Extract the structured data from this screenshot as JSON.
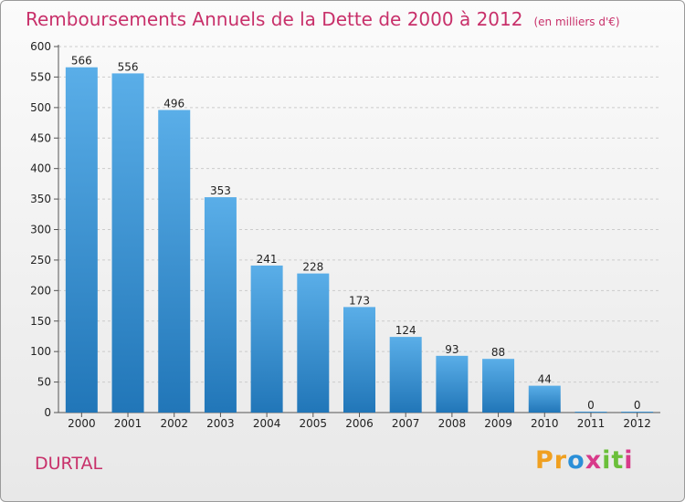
{
  "header": {
    "title": "Remboursements Annuels de la Dette de 2000 à 2012",
    "unit": "(en milliers d'€)"
  },
  "footer": {
    "town": "DURTAL",
    "logo_letters": [
      "P",
      "r",
      "o",
      "x",
      "i",
      "t",
      "i"
    ]
  },
  "colors": {
    "title": "#c8306a",
    "bar_top": "#5aaee8",
    "bar_bottom": "#2176b8",
    "grid": "#cccccc",
    "logo": [
      "#f0a020",
      "#f0a020",
      "#2a8fd8",
      "#d83a8a",
      "#6bbf3a",
      "#6bbf3a",
      "#d83a8a"
    ]
  },
  "chart_data": {
    "type": "bar",
    "title": "Remboursements Annuels de la Dette de 2000 à 2012",
    "xlabel": "",
    "ylabel": "",
    "categories": [
      "2000",
      "2001",
      "2002",
      "2003",
      "2004",
      "2005",
      "2006",
      "2007",
      "2008",
      "2009",
      "2010",
      "2011",
      "2012"
    ],
    "values": [
      566,
      556,
      496,
      353,
      241,
      228,
      173,
      124,
      93,
      88,
      44,
      0,
      0
    ],
    "ylim": [
      0,
      600
    ],
    "yticks": [
      0,
      50,
      100,
      150,
      200,
      250,
      300,
      350,
      400,
      450,
      500,
      550,
      600
    ],
    "grid": "horizontal dashed",
    "legend": "none"
  }
}
